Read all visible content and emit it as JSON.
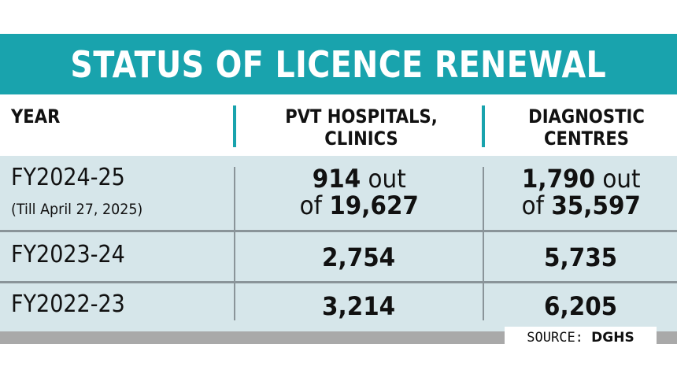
{
  "title": "STATUS OF LICENCE RENEWAL",
  "columns": [
    "YEAR",
    "PVT HOSPITALS, CLINICS",
    "DIAGNOSTIC CENTRES"
  ],
  "column_lines": {
    "col2": [
      "PVT HOSPITALS,",
      "CLINICS"
    ],
    "col3": [
      "DIAGNOSTIC",
      "CENTRES"
    ]
  },
  "rows": [
    {
      "year": "FY2024-25",
      "note": "(Till April 27, 2025)",
      "hospitals": {
        "renewed": "914",
        "joiner": "out",
        "prefix": "of",
        "total": "19,627"
      },
      "diagnostic": {
        "renewed": "1,790",
        "joiner": "out",
        "prefix": "of",
        "total": "35,597"
      }
    },
    {
      "year": "FY2023-24",
      "hospitals": "2,754",
      "diagnostic": "5,735"
    },
    {
      "year": "FY2022-23",
      "hospitals": "3,214",
      "diagnostic": "6,205"
    }
  ],
  "source": {
    "label": "SOURCE:",
    "value": "DGHS"
  },
  "colors": {
    "accent": "#19a3ad",
    "table_bg": "#d6e6ea",
    "rule": "#8a9499",
    "footer_bar": "#a9a9a9"
  }
}
